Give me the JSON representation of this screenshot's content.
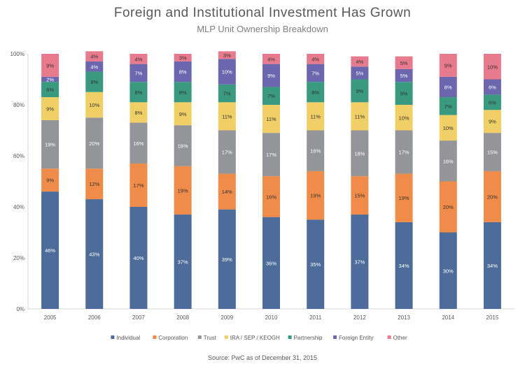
{
  "chart_data": {
    "type": "bar",
    "stacked": true,
    "title": "Foreign and Institutional Investment Has Grown",
    "subtitle": "MLP Unit Ownership Breakdown",
    "source": "Source: PwC as of December 31, 2015",
    "xlabel": "",
    "ylabel": "",
    "ylim": [
      0,
      100
    ],
    "yticks": [
      "0%",
      "20%",
      "40%",
      "60%",
      "80%",
      "100%"
    ],
    "grid": false,
    "legend_position": "bottom",
    "categories": [
      "2005",
      "2006",
      "2007",
      "2008",
      "2009",
      "2010",
      "2011",
      "2012",
      "2013",
      "2014",
      "2015"
    ],
    "series": [
      {
        "name": "Individual",
        "color": "#4e6c99",
        "values": [
          46,
          43,
          40,
          37,
          39,
          36,
          35,
          37,
          34,
          30,
          34
        ]
      },
      {
        "name": "Corporation",
        "color": "#f08c4a",
        "values": [
          9,
          12,
          17,
          19,
          14,
          16,
          19,
          15,
          19,
          20,
          20
        ]
      },
      {
        "name": "Trust",
        "color": "#939598",
        "values": [
          19,
          20,
          16,
          16,
          17,
          17,
          16,
          18,
          17,
          16,
          15
        ]
      },
      {
        "name": "IRA / SEP / KEOGH",
        "color": "#f0cf66",
        "values": [
          9,
          10,
          8,
          9,
          11,
          11,
          11,
          11,
          10,
          10,
          9
        ]
      },
      {
        "name": "Partnership",
        "color": "#3a9a80",
        "values": [
          6,
          8,
          8,
          8,
          7,
          7,
          8,
          9,
          9,
          7,
          6
        ]
      },
      {
        "name": "Foreign Entity",
        "color": "#6b66ad",
        "values": [
          2,
          4,
          7,
          8,
          10,
          9,
          7,
          5,
          5,
          8,
          6
        ]
      },
      {
        "name": "Other",
        "color": "#e87a8e",
        "values": [
          9,
          4,
          4,
          3,
          3,
          4,
          4,
          4,
          5,
          9,
          10
        ]
      }
    ]
  }
}
